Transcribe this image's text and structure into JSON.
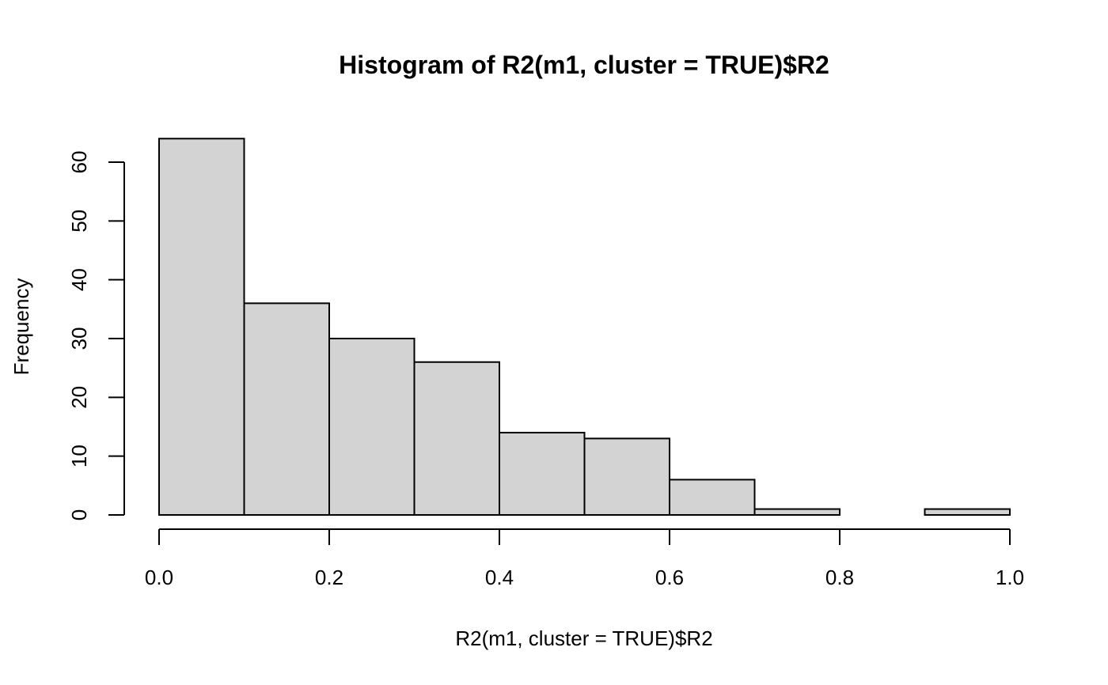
{
  "chart_data": {
    "type": "bar",
    "subtype": "histogram",
    "title": "Histogram of R2(m1, cluster = TRUE)$R2",
    "xlabel": "R2(m1, cluster = TRUE)$R2",
    "ylabel": "Frequency",
    "bins": [
      {
        "x0": 0.0,
        "x1": 0.1,
        "count": 64
      },
      {
        "x0": 0.1,
        "x1": 0.2,
        "count": 36
      },
      {
        "x0": 0.2,
        "x1": 0.3,
        "count": 30
      },
      {
        "x0": 0.3,
        "x1": 0.4,
        "count": 26
      },
      {
        "x0": 0.4,
        "x1": 0.5,
        "count": 14
      },
      {
        "x0": 0.5,
        "x1": 0.6,
        "count": 13
      },
      {
        "x0": 0.6,
        "x1": 0.7,
        "count": 6
      },
      {
        "x0": 0.7,
        "x1": 0.8,
        "count": 1
      },
      {
        "x0": 0.8,
        "x1": 0.9,
        "count": 0
      },
      {
        "x0": 0.9,
        "x1": 1.0,
        "count": 1
      }
    ],
    "xlim": [
      0.0,
      1.0
    ],
    "ylim": [
      0,
      64
    ],
    "x_ticks": [
      "0.0",
      "0.2",
      "0.4",
      "0.6",
      "0.8",
      "1.0"
    ],
    "x_tick_values": [
      0.0,
      0.2,
      0.4,
      0.6,
      0.8,
      1.0
    ],
    "y_ticks": [
      "0",
      "10",
      "20",
      "30",
      "40",
      "50",
      "60"
    ],
    "y_tick_values": [
      0,
      10,
      20,
      30,
      40,
      50,
      60
    ],
    "grid": false,
    "bar_color": "#d3d3d3",
    "edge_color": "#000000"
  }
}
